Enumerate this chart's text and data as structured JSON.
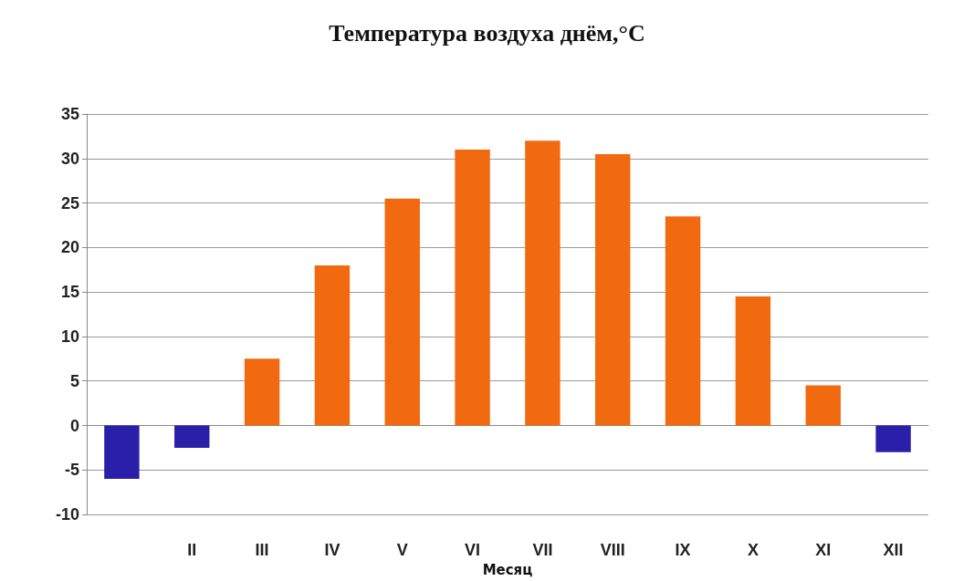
{
  "chart_data": {
    "type": "bar",
    "title": "Температура воздуха днём,°C",
    "xlabel": "Месяц",
    "categories": [
      null,
      "II",
      "III",
      "IV",
      "V",
      "VI",
      "VII",
      "VIII",
      "IX",
      "X",
      "XI",
      "XII"
    ],
    "values": [
      -6,
      -2.5,
      7.5,
      18,
      25.5,
      31,
      32,
      30.5,
      23.5,
      14.5,
      4.5,
      -3
    ],
    "colors": [
      "#2a1fa8",
      "#2a1fa8",
      "#f26a10",
      "#f26a10",
      "#f26a10",
      "#f26a10",
      "#f26a10",
      "#f26a10",
      "#f26a10",
      "#f26a10",
      "#f26a10",
      "#2a1fa8"
    ],
    "ylim": [
      -10,
      35
    ],
    "yticks": [
      -10,
      -5,
      0,
      5,
      10,
      15,
      20,
      25,
      30,
      35
    ],
    "grid": "y"
  }
}
